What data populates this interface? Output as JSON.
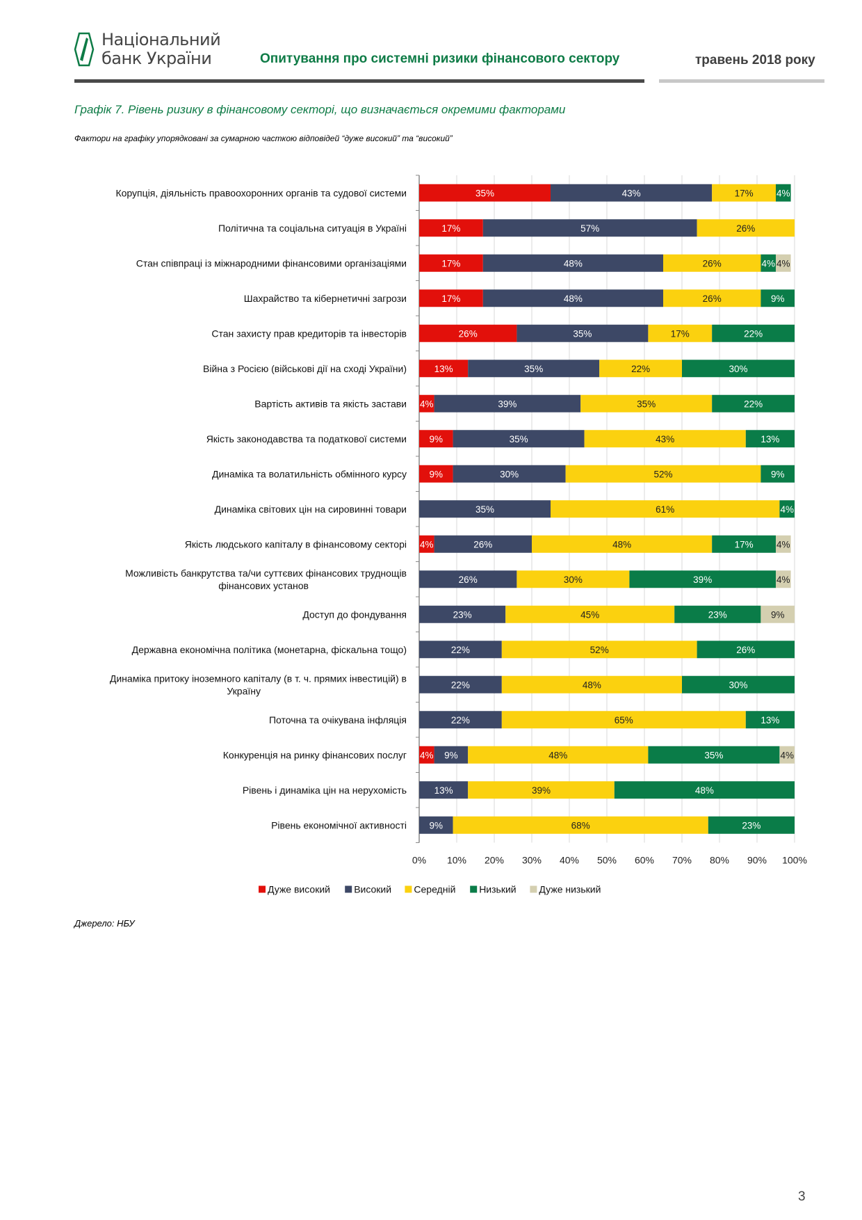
{
  "header": {
    "logo_line1": "Національний",
    "logo_line2": "банк України",
    "title": "Опитування про системні ризики фінансового сектору",
    "date": "травень 2018 року"
  },
  "chart_data": {
    "type": "bar",
    "orientation": "horizontal-stacked-100",
    "title": "Графік 7. Рівень ризику в фінансовому секторі, що визначається окремими факторами",
    "subtitle": "Фактори на графіку упорядковані за сумарною часткою відповідей “дуже високий” та “високий”",
    "xlabel": "",
    "ylabel": "",
    "xlim": [
      0,
      100
    ],
    "x_ticks": [
      "0%",
      "10%",
      "20%",
      "30%",
      "40%",
      "50%",
      "60%",
      "70%",
      "80%",
      "90%",
      "100%"
    ],
    "grid": true,
    "legend_position": "bottom",
    "categories": [
      "Корупція, діяльність правоохоронних органів та судової системи",
      "Політична та соціальна ситуація в Україні",
      "Стан співпраці із міжнародними фінансовими організаціями",
      "Шахрайство та кібернетичні загрози",
      "Стан захисту прав кредиторів та інвесторів",
      "Війна з Росією (військові дії на сході України)",
      "Вартість активів та якість застави",
      "Якість законодавства та податкової системи",
      "Динаміка та волатильність обмінного курсу",
      "Динаміка світових цін на сировинні товари",
      "Якість людського капіталу в фінансовому секторі",
      "Можливість банкрутства та/чи суттєвих фінансових труднощів фінансових установ",
      "Доступ до фондування",
      "Державна економічна політика (монетарна, фіскальна тощо)",
      "Динаміка притоку іноземного капіталу (в т. ч. прямих інвестицій) в Україну",
      "Поточна та очікувана інфляція",
      "Конкуренція на ринку фінансових послуг",
      "Рівень і динаміка цін на нерухомість",
      "Рівень економічної активності"
    ],
    "series": [
      {
        "name": "Дуже високий",
        "color": "#e2100b",
        "label_color": "#ffffff",
        "values": [
          35,
          17,
          17,
          17,
          26,
          13,
          4,
          9,
          9,
          0,
          4,
          0,
          0,
          0,
          0,
          0,
          4,
          0,
          0
        ]
      },
      {
        "name": "Високий",
        "color": "#3d4866",
        "label_color": "#ffffff",
        "values": [
          43,
          57,
          48,
          48,
          35,
          35,
          39,
          35,
          30,
          35,
          26,
          26,
          23,
          22,
          22,
          22,
          9,
          13,
          9
        ]
      },
      {
        "name": "Середній",
        "color": "#fbd10f",
        "label_color": "#222222",
        "values": [
          17,
          26,
          26,
          26,
          17,
          22,
          35,
          43,
          52,
          61,
          48,
          30,
          45,
          52,
          48,
          65,
          48,
          39,
          68
        ]
      },
      {
        "name": "Низький",
        "color": "#0a7c48",
        "label_color": "#ffffff",
        "values": [
          4,
          0,
          4,
          9,
          22,
          30,
          22,
          13,
          9,
          4,
          17,
          39,
          23,
          26,
          30,
          13,
          35,
          48,
          23
        ]
      },
      {
        "name": "Дуже низький",
        "color": "#d4cfb0",
        "label_color": "#222222",
        "values": [
          0,
          0,
          4,
          0,
          0,
          0,
          0,
          0,
          0,
          0,
          4,
          4,
          9,
          0,
          0,
          0,
          4,
          0,
          0
        ]
      }
    ]
  },
  "source": "Джерело: НБУ",
  "page_number": "3"
}
